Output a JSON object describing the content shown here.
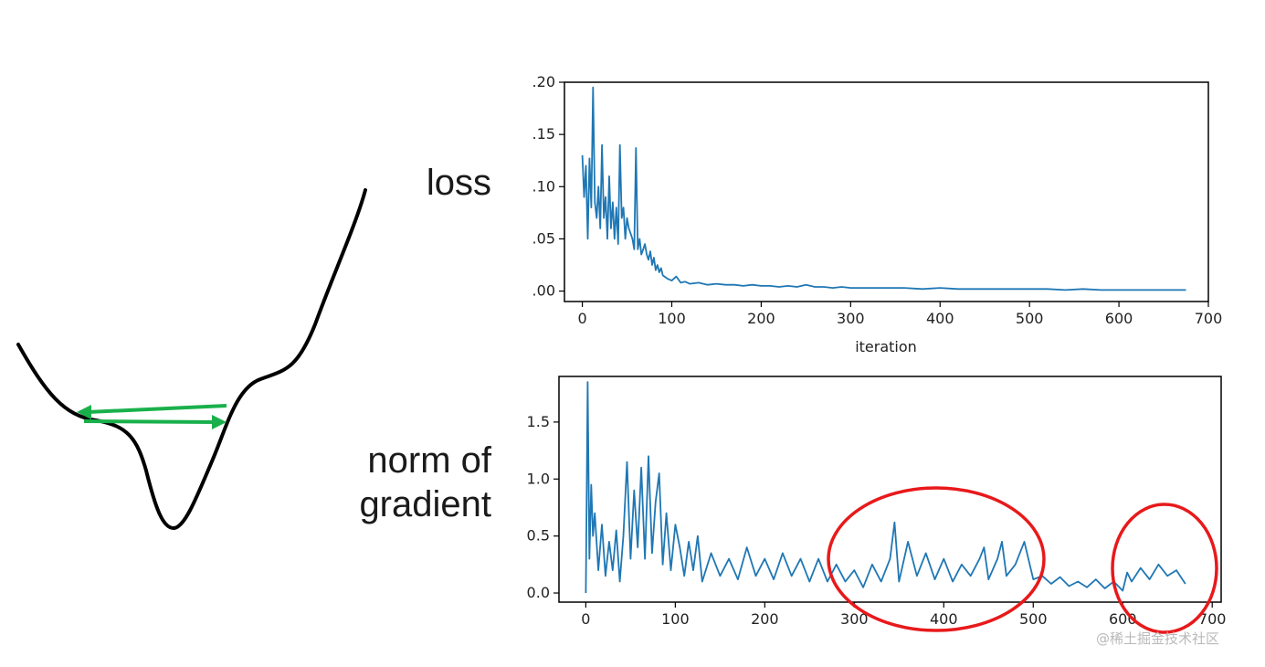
{
  "labels": {
    "loss": "loss",
    "norm_line1": "norm of",
    "norm_line2": "gradient",
    "watermark": "@稀土掘金技术社区"
  },
  "colors": {
    "series": "#1f77b4",
    "curve": "#000000",
    "arrows": "#19b04b",
    "highlight": "#e8191b",
    "axes": "#000000"
  },
  "chart_data": [
    {
      "type": "line",
      "title": "",
      "xlabel": "iteration",
      "ylabel": "",
      "xlim": [
        -20,
        700
      ],
      "ylim": [
        -0.01,
        0.2
      ],
      "x_ticks": [
        0,
        100,
        200,
        300,
        400,
        500,
        600,
        700
      ],
      "y_ticks": [
        0.0,
        0.05,
        0.1,
        0.15,
        0.2
      ],
      "y_tick_labels": [
        ".00",
        ".05",
        ".10",
        ".15",
        ".20"
      ],
      "grid": false,
      "series": [
        {
          "x": [
            0,
            2,
            4,
            6,
            8,
            10,
            12,
            14,
            16,
            18,
            20,
            22,
            24,
            26,
            28,
            30,
            32,
            34,
            36,
            38,
            40,
            42,
            44,
            46,
            48,
            50,
            52,
            54,
            56,
            58,
            60,
            62,
            64,
            66,
            68,
            70,
            72,
            74,
            76,
            78,
            80,
            82,
            84,
            86,
            88,
            90,
            95,
            100,
            105,
            110,
            115,
            120,
            130,
            140,
            150,
            160,
            170,
            180,
            190,
            200,
            210,
            220,
            230,
            240,
            250,
            260,
            270,
            280,
            290,
            300,
            320,
            340,
            360,
            380,
            400,
            420,
            440,
            460,
            480,
            500,
            520,
            540,
            560,
            580,
            600,
            620,
            640,
            660,
            675
          ],
          "y": [
            0.13,
            0.09,
            0.12,
            0.05,
            0.127,
            0.08,
            0.195,
            0.085,
            0.07,
            0.1,
            0.06,
            0.14,
            0.07,
            0.09,
            0.05,
            0.11,
            0.06,
            0.085,
            0.05,
            0.08,
            0.045,
            0.14,
            0.07,
            0.08,
            0.05,
            0.07,
            0.06,
            0.055,
            0.05,
            0.04,
            0.137,
            0.04,
            0.05,
            0.035,
            0.04,
            0.045,
            0.035,
            0.03,
            0.038,
            0.025,
            0.032,
            0.02,
            0.025,
            0.018,
            0.022,
            0.015,
            0.012,
            0.01,
            0.014,
            0.008,
            0.009,
            0.007,
            0.008,
            0.006,
            0.007,
            0.006,
            0.006,
            0.005,
            0.006,
            0.005,
            0.005,
            0.004,
            0.005,
            0.004,
            0.006,
            0.004,
            0.004,
            0.003,
            0.004,
            0.003,
            0.003,
            0.003,
            0.003,
            0.002,
            0.003,
            0.002,
            0.002,
            0.002,
            0.002,
            0.002,
            0.002,
            0.001,
            0.002,
            0.001,
            0.001,
            0.001,
            0.001,
            0.001,
            0.001
          ]
        }
      ]
    },
    {
      "type": "line",
      "title": "",
      "xlabel": "",
      "ylabel": "",
      "xlim": [
        -30,
        710
      ],
      "ylim": [
        -0.08,
        1.9
      ],
      "x_ticks": [
        0,
        100,
        200,
        300,
        400,
        500,
        600,
        700
      ],
      "y_ticks": [
        0.0,
        0.5,
        1.0,
        1.5
      ],
      "y_tick_labels": [
        "0.0",
        "0.5",
        "1.0",
        "1.5"
      ],
      "grid": false,
      "series": [
        {
          "x": [
            0,
            2,
            4,
            6,
            8,
            10,
            14,
            18,
            22,
            26,
            30,
            34,
            38,
            42,
            46,
            50,
            54,
            58,
            62,
            66,
            70,
            74,
            78,
            82,
            86,
            90,
            95,
            100,
            105,
            110,
            115,
            120,
            125,
            130,
            140,
            150,
            160,
            170,
            180,
            190,
            200,
            210,
            220,
            230,
            240,
            250,
            260,
            270,
            280,
            290,
            300,
            310,
            320,
            330,
            340,
            345,
            350,
            360,
            370,
            380,
            390,
            400,
            410,
            420,
            430,
            440,
            445,
            450,
            460,
            465,
            470,
            480,
            490,
            500,
            510,
            520,
            530,
            540,
            550,
            560,
            570,
            580,
            590,
            600,
            605,
            610,
            620,
            630,
            640,
            650,
            660,
            670
          ],
          "y": [
            0.0,
            1.85,
            0.3,
            0.95,
            0.5,
            0.7,
            0.2,
            0.6,
            0.15,
            0.45,
            0.2,
            0.55,
            0.1,
            0.5,
            1.15,
            0.3,
            0.9,
            0.4,
            1.1,
            0.3,
            1.2,
            0.35,
            0.8,
            1.05,
            0.25,
            0.7,
            0.2,
            0.6,
            0.4,
            0.15,
            0.45,
            0.2,
            0.5,
            0.1,
            0.35,
            0.15,
            0.3,
            0.12,
            0.4,
            0.15,
            0.3,
            0.12,
            0.35,
            0.15,
            0.3,
            0.1,
            0.3,
            0.1,
            0.25,
            0.1,
            0.2,
            0.05,
            0.25,
            0.1,
            0.3,
            0.62,
            0.1,
            0.45,
            0.15,
            0.35,
            0.12,
            0.3,
            0.1,
            0.25,
            0.15,
            0.3,
            0.4,
            0.12,
            0.3,
            0.45,
            0.15,
            0.25,
            0.45,
            0.12,
            0.15,
            0.08,
            0.14,
            0.06,
            0.1,
            0.05,
            0.12,
            0.04,
            0.1,
            0.02,
            0.18,
            0.1,
            0.22,
            0.12,
            0.25,
            0.15,
            0.2,
            0.08
          ]
        }
      ]
    }
  ]
}
